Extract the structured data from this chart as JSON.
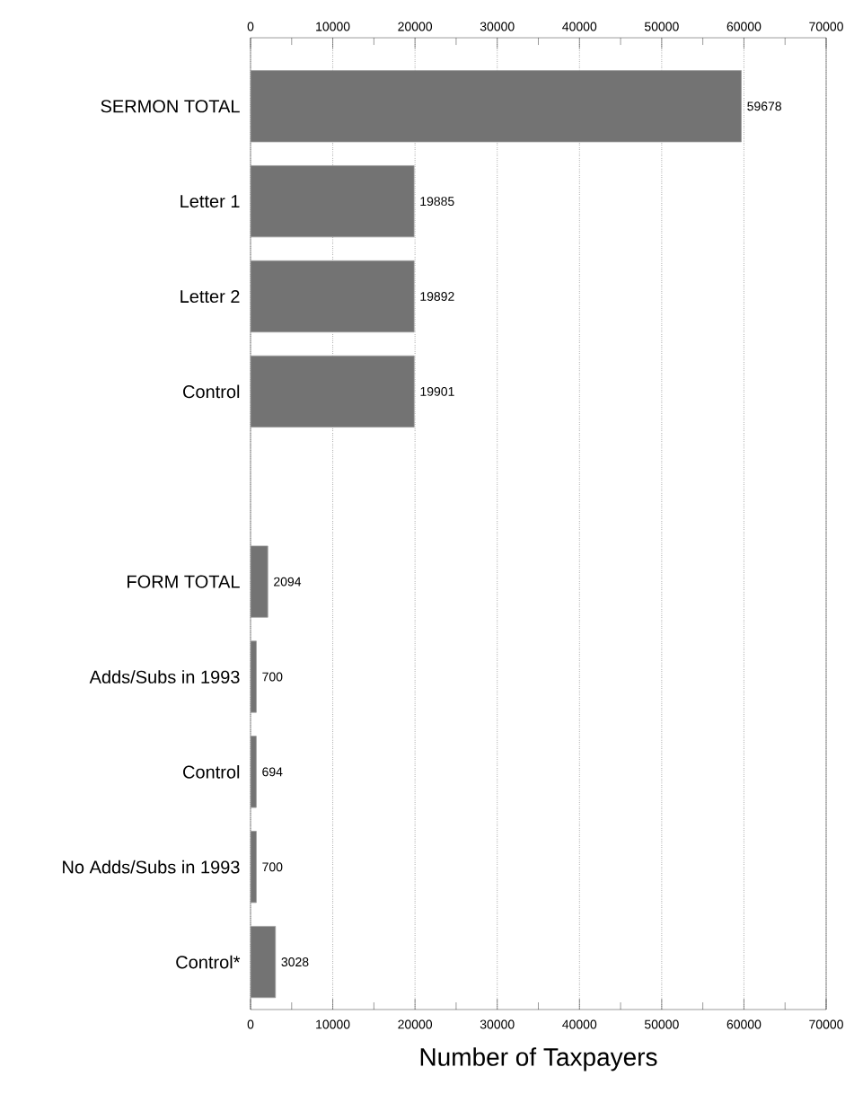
{
  "chart_data": {
    "type": "bar",
    "orientation": "horizontal",
    "xlabel": "Number of Taxpayers",
    "categories": [
      "SERMON TOTAL",
      "Letter 1",
      "Letter 2",
      "Control",
      null,
      "FORM TOTAL",
      "Adds/Subs in 1993",
      "Control",
      "No Adds/Subs in 1993",
      "Control*"
    ],
    "values": [
      59678,
      19885,
      19892,
      19901,
      null,
      2094,
      700,
      694,
      700,
      3028
    ],
    "color": "#737373",
    "data_labels": true,
    "grid": "x",
    "xlim": [
      0,
      70000
    ],
    "xticks": [
      0,
      {
        "value": 5000,
        "label": null
      },
      10000,
      {
        "value": 15000,
        "label": null
      },
      20000,
      {
        "value": 25000,
        "label": null
      },
      30000,
      {
        "value": 35000,
        "label": null
      },
      40000,
      {
        "value": 45000,
        "label": null
      },
      50000,
      {
        "value": 55000,
        "label": null
      },
      60000,
      {
        "value": 65000,
        "label": null
      },
      70000
    ],
    "x2lim": [
      0,
      70000
    ],
    "x2ticks": [
      0,
      10000,
      20000,
      30000,
      40000,
      50000,
      60000,
      70000
    ]
  }
}
